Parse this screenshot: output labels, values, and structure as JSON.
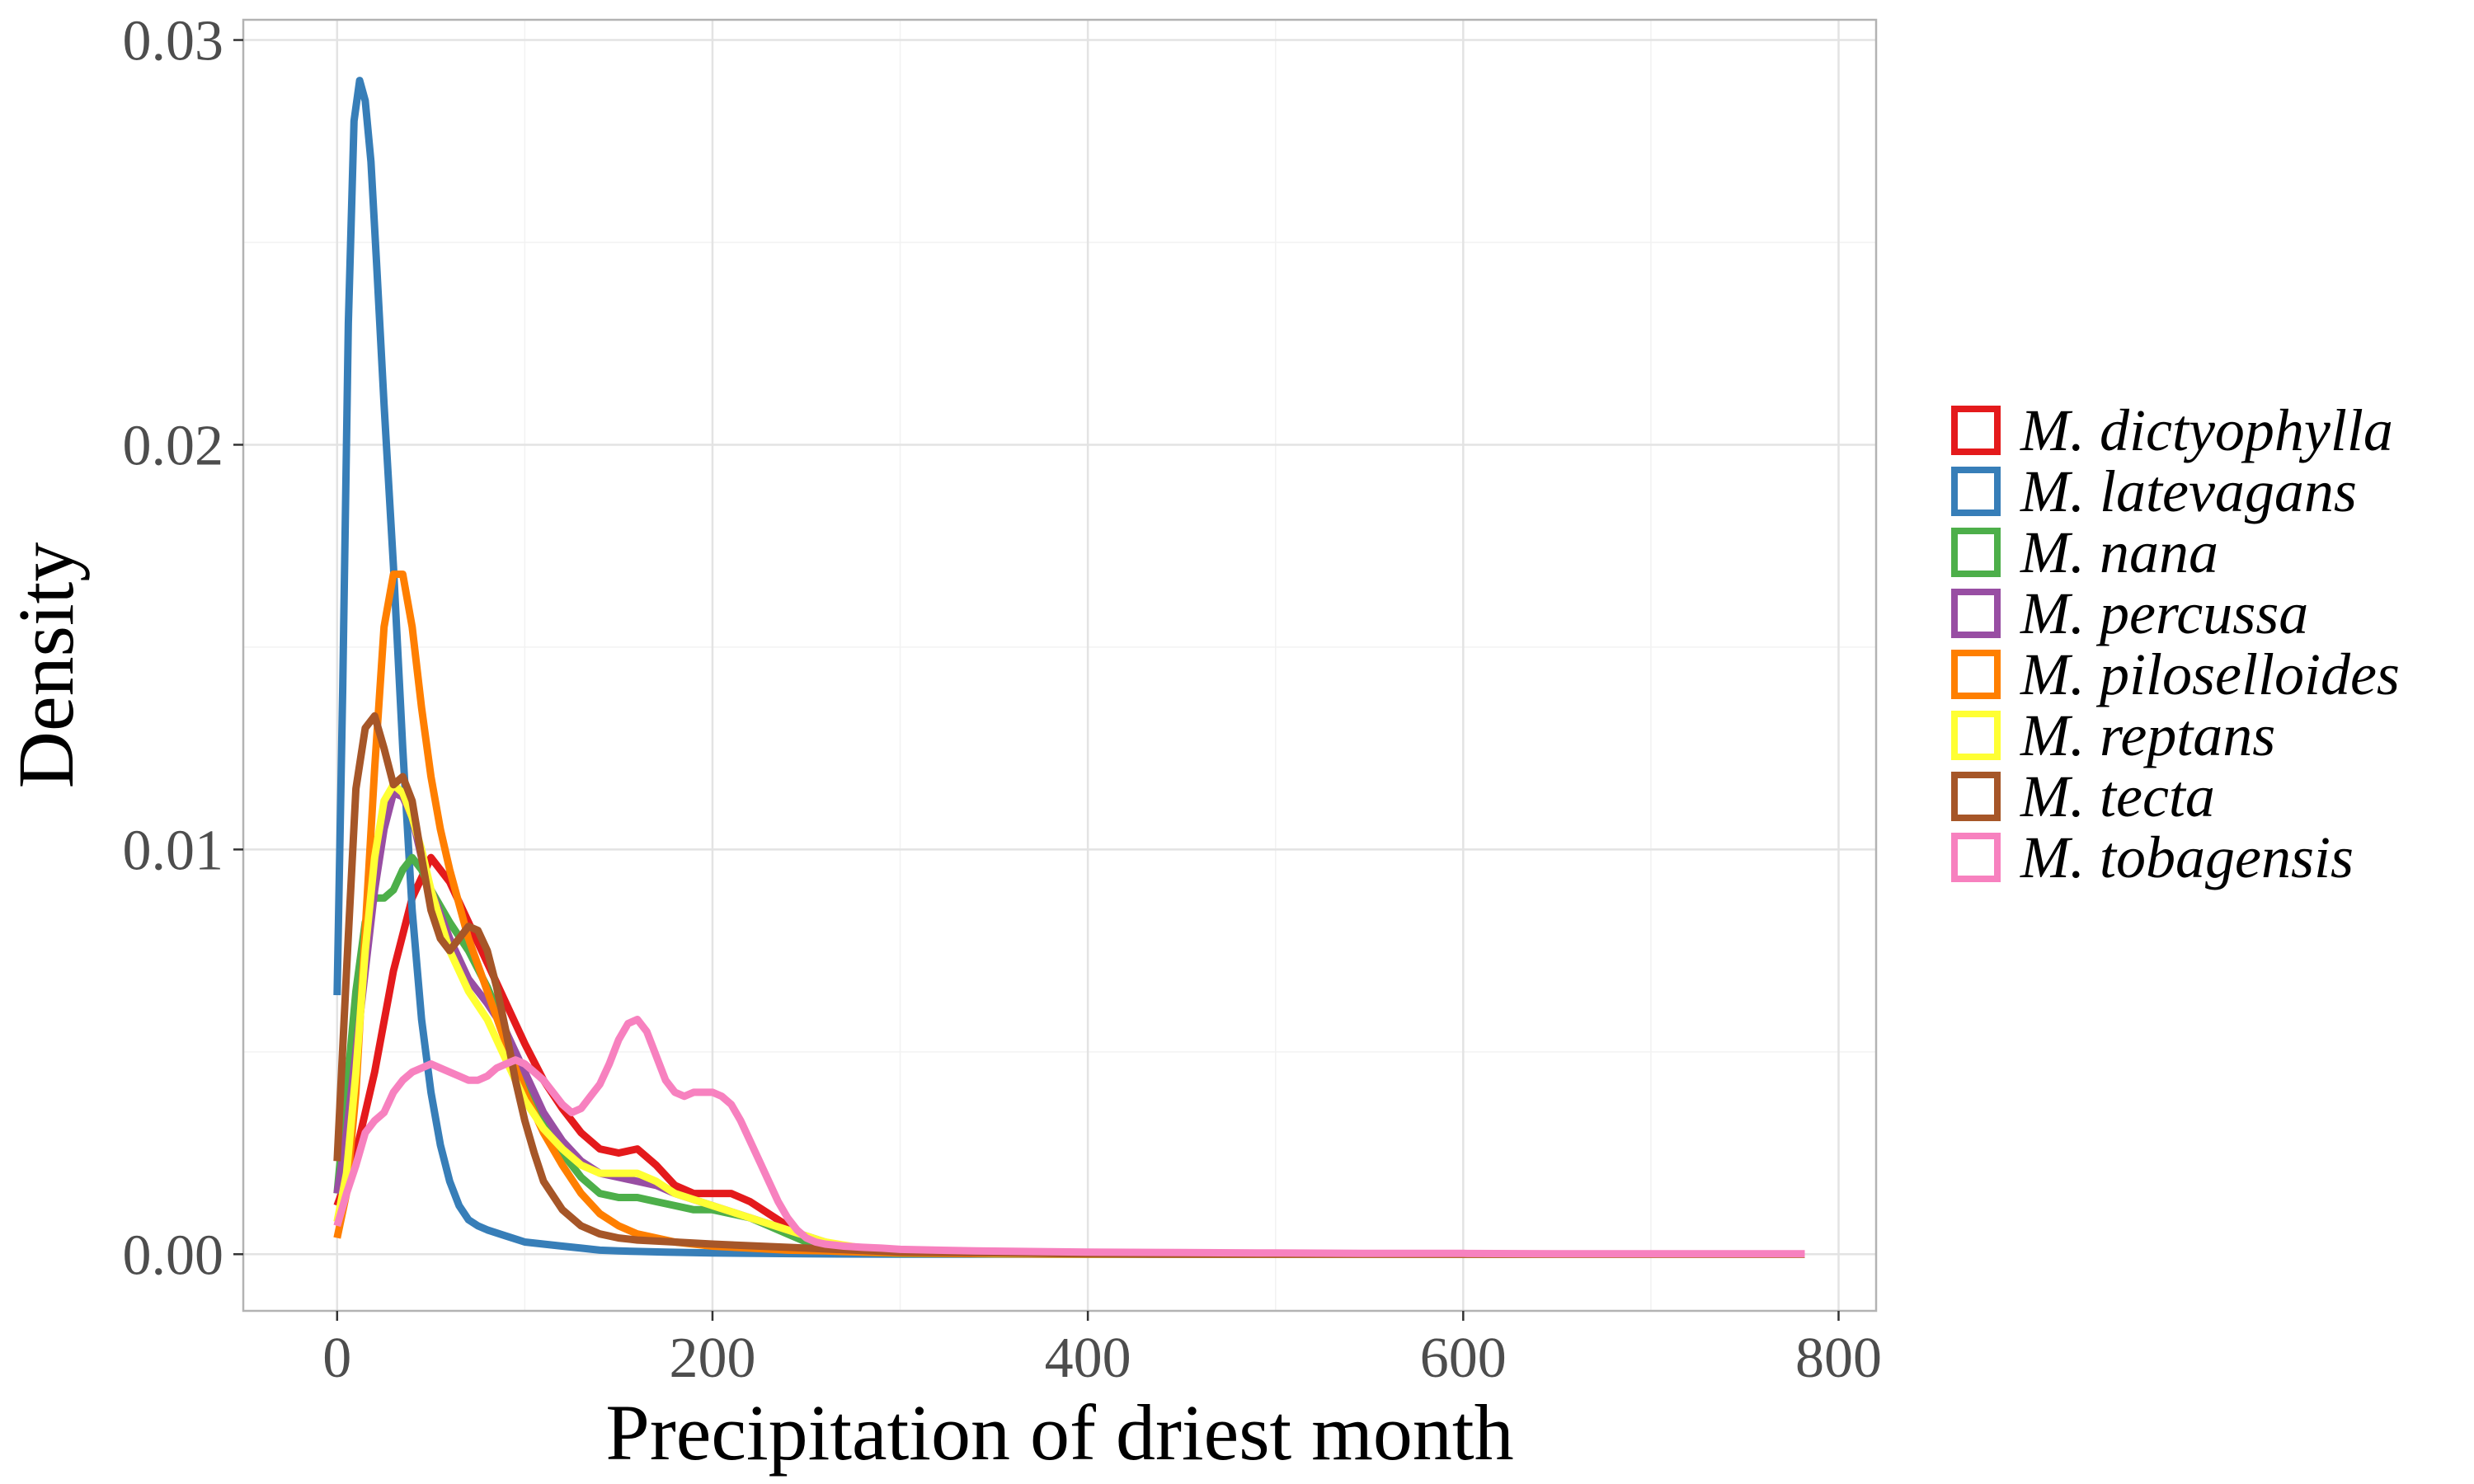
{
  "chart_data": {
    "type": "line",
    "xlabel": "Precipitation of driest month",
    "ylabel": "Density",
    "xlim": [
      -50,
      820
    ],
    "ylim": [
      -0.0014,
      0.0305
    ],
    "x_ticks": [
      0,
      200,
      400,
      600,
      800
    ],
    "x_tick_labels": [
      "0",
      "200",
      "400",
      "600",
      "800"
    ],
    "y_ticks": [
      0,
      0.01,
      0.02,
      0.03
    ],
    "y_tick_labels": [
      "0.00",
      "0.01",
      "0.02",
      "0.03"
    ],
    "grid": true,
    "legend_position": "right",
    "series": [
      {
        "name": "M. dictyophylla",
        "color": "#e41a1c",
        "x": [
          0,
          10,
          20,
          30,
          40,
          50,
          60,
          70,
          80,
          90,
          100,
          110,
          120,
          130,
          140,
          150,
          160,
          170,
          180,
          190,
          200,
          210,
          220,
          230,
          240,
          250,
          260,
          280,
          300,
          350,
          400,
          500,
          600,
          700,
          782
        ],
        "y": [
          0.0012,
          0.0025,
          0.0045,
          0.007,
          0.0088,
          0.0098,
          0.0092,
          0.0082,
          0.0072,
          0.0062,
          0.0052,
          0.0043,
          0.0036,
          0.003,
          0.0026,
          0.0025,
          0.0026,
          0.0022,
          0.0017,
          0.0015,
          0.0015,
          0.0015,
          0.0013,
          0.001,
          0.0007,
          0.0004,
          0.0002,
          0.0001,
          5e-05,
          2e-05,
          1e-05,
          0,
          0,
          0,
          0
        ]
      },
      {
        "name": "M. latevagans",
        "color": "#377eb8",
        "x": [
          0,
          3,
          6,
          9,
          12,
          15,
          18,
          21,
          25,
          30,
          35,
          40,
          45,
          50,
          55,
          60,
          65,
          70,
          75,
          80,
          90,
          100,
          110,
          120,
          130,
          140,
          150,
          175,
          200,
          250,
          300,
          400,
          500,
          600,
          700,
          782
        ],
        "y": [
          0.0064,
          0.014,
          0.023,
          0.028,
          0.029,
          0.0285,
          0.027,
          0.0245,
          0.021,
          0.017,
          0.0125,
          0.0085,
          0.0058,
          0.004,
          0.0027,
          0.0018,
          0.0012,
          0.00085,
          0.0007,
          0.0006,
          0.00045,
          0.0003,
          0.00025,
          0.0002,
          0.00015,
          0.0001,
          8e-05,
          5e-05,
          3e-05,
          1e-05,
          0,
          0,
          0,
          0,
          0,
          0
        ]
      },
      {
        "name": "M. nana",
        "color": "#4daf4a",
        "x": [
          0,
          5,
          10,
          15,
          20,
          25,
          30,
          35,
          40,
          45,
          50,
          60,
          70,
          80,
          90,
          100,
          110,
          120,
          130,
          140,
          150,
          160,
          170,
          180,
          190,
          200,
          210,
          220,
          230,
          240,
          250,
          260,
          280,
          300,
          350,
          400,
          500,
          600,
          700,
          782
        ],
        "y": [
          0.0015,
          0.004,
          0.0065,
          0.0082,
          0.0088,
          0.0088,
          0.009,
          0.0095,
          0.0098,
          0.0095,
          0.009,
          0.0082,
          0.0075,
          0.0066,
          0.0055,
          0.0044,
          0.0033,
          0.0025,
          0.0019,
          0.0015,
          0.0014,
          0.0014,
          0.0013,
          0.0012,
          0.0011,
          0.0011,
          0.001,
          0.0009,
          0.0007,
          0.0005,
          0.0003,
          0.00015,
          5e-05,
          2e-05,
          1e-05,
          0,
          0,
          0,
          0,
          0
        ]
      },
      {
        "name": "M. percussa",
        "color": "#984ea3",
        "x": [
          0,
          5,
          10,
          15,
          20,
          25,
          30,
          35,
          40,
          45,
          50,
          60,
          70,
          80,
          90,
          100,
          110,
          120,
          130,
          140,
          150,
          160,
          170,
          180,
          200,
          220,
          240,
          260,
          280,
          300,
          400,
          500,
          600,
          700,
          782
        ],
        "y": [
          0.0015,
          0.003,
          0.005,
          0.007,
          0.009,
          0.0105,
          0.0114,
          0.0113,
          0.0108,
          0.0098,
          0.009,
          0.0078,
          0.0068,
          0.0062,
          0.0055,
          0.0045,
          0.0035,
          0.0028,
          0.0023,
          0.002,
          0.0019,
          0.0018,
          0.0017,
          0.0015,
          0.0012,
          0.0009,
          0.0006,
          0.0003,
          0.0001,
          5e-05,
          1e-05,
          0,
          0,
          0,
          0
        ]
      },
      {
        "name": "M. piloselloides",
        "color": "#ff7f00",
        "x": [
          0,
          5,
          10,
          15,
          20,
          25,
          30,
          35,
          40,
          45,
          50,
          55,
          60,
          70,
          80,
          90,
          100,
          110,
          120,
          130,
          140,
          150,
          160,
          180,
          200,
          220,
          240,
          260,
          280,
          300,
          350,
          400,
          500,
          600,
          700,
          782
        ],
        "y": [
          0.0004,
          0.0015,
          0.004,
          0.008,
          0.012,
          0.0155,
          0.0168,
          0.0168,
          0.0155,
          0.0135,
          0.0118,
          0.0105,
          0.0095,
          0.0078,
          0.0065,
          0.0052,
          0.004,
          0.003,
          0.0022,
          0.0015,
          0.001,
          0.0007,
          0.0005,
          0.0003,
          0.0002,
          0.00015,
          0.0001,
          8e-05,
          5e-05,
          3e-05,
          1e-05,
          0,
          0,
          0,
          0,
          0
        ]
      },
      {
        "name": "M. reptans",
        "color": "#ffff33",
        "x": [
          0,
          5,
          10,
          15,
          20,
          25,
          30,
          35,
          40,
          45,
          50,
          60,
          70,
          80,
          90,
          100,
          110,
          120,
          130,
          140,
          150,
          160,
          170,
          180,
          200,
          220,
          240,
          260,
          280,
          300,
          350,
          400,
          500,
          600,
          700,
          782
        ],
        "y": [
          0.0008,
          0.002,
          0.0045,
          0.0075,
          0.0098,
          0.0112,
          0.0116,
          0.0114,
          0.0108,
          0.01,
          0.009,
          0.0075,
          0.0065,
          0.0058,
          0.0048,
          0.0038,
          0.0031,
          0.0026,
          0.0022,
          0.002,
          0.002,
          0.002,
          0.0018,
          0.0015,
          0.0012,
          0.0009,
          0.0006,
          0.0003,
          0.00015,
          8e-05,
          2e-05,
          1e-05,
          0,
          0,
          0,
          0
        ]
      },
      {
        "name": "M. tecta",
        "color": "#a65628",
        "x": [
          0,
          5,
          10,
          15,
          20,
          25,
          30,
          35,
          40,
          45,
          50,
          55,
          60,
          65,
          70,
          75,
          80,
          85,
          90,
          95,
          100,
          105,
          110,
          120,
          130,
          140,
          150,
          160,
          180,
          200,
          250,
          300,
          400,
          500,
          600,
          700,
          782
        ],
        "y": [
          0.0023,
          0.007,
          0.0115,
          0.013,
          0.0133,
          0.0125,
          0.0116,
          0.0118,
          0.0112,
          0.0098,
          0.0085,
          0.0078,
          0.0075,
          0.0078,
          0.0081,
          0.008,
          0.0075,
          0.0066,
          0.0055,
          0.0043,
          0.0033,
          0.0025,
          0.0018,
          0.0011,
          0.0007,
          0.0005,
          0.0004,
          0.00035,
          0.0003,
          0.00025,
          0.00015,
          5e-05,
          1e-05,
          0,
          0,
          0,
          0
        ]
      },
      {
        "name": "M. tobagensis",
        "color": "#f781bf",
        "x": [
          0,
          5,
          10,
          15,
          20,
          25,
          30,
          35,
          40,
          45,
          50,
          55,
          60,
          65,
          70,
          75,
          80,
          85,
          90,
          95,
          100,
          105,
          110,
          115,
          120,
          125,
          130,
          135,
          140,
          145,
          150,
          155,
          160,
          165,
          170,
          175,
          180,
          185,
          190,
          195,
          200,
          205,
          210,
          215,
          220,
          225,
          230,
          235,
          240,
          245,
          250,
          255,
          260,
          270,
          280,
          290,
          300,
          320,
          340,
          360,
          380,
          400,
          450,
          500,
          550,
          600,
          650,
          700,
          750,
          782
        ],
        "y": [
          0.0007,
          0.0015,
          0.0022,
          0.003,
          0.0033,
          0.0035,
          0.004,
          0.0043,
          0.0045,
          0.0046,
          0.0047,
          0.0046,
          0.0045,
          0.0044,
          0.0043,
          0.0043,
          0.0044,
          0.0046,
          0.0047,
          0.0048,
          0.0047,
          0.0045,
          0.0043,
          0.004,
          0.0037,
          0.0035,
          0.0036,
          0.0039,
          0.0042,
          0.0047,
          0.0053,
          0.0057,
          0.0058,
          0.0055,
          0.0049,
          0.0043,
          0.004,
          0.0039,
          0.004,
          0.004,
          0.004,
          0.0039,
          0.0037,
          0.0033,
          0.0028,
          0.0023,
          0.0018,
          0.0013,
          0.0009,
          0.0006,
          0.0004,
          0.0003,
          0.00025,
          0.0002,
          0.00017,
          0.00015,
          0.00012,
          0.0001,
          8e-05,
          7e-05,
          6e-05,
          5e-05,
          4e-05,
          3e-05,
          2e-05,
          2e-05,
          1e-05,
          1e-05,
          1e-05,
          1e-05
        ]
      }
    ]
  }
}
